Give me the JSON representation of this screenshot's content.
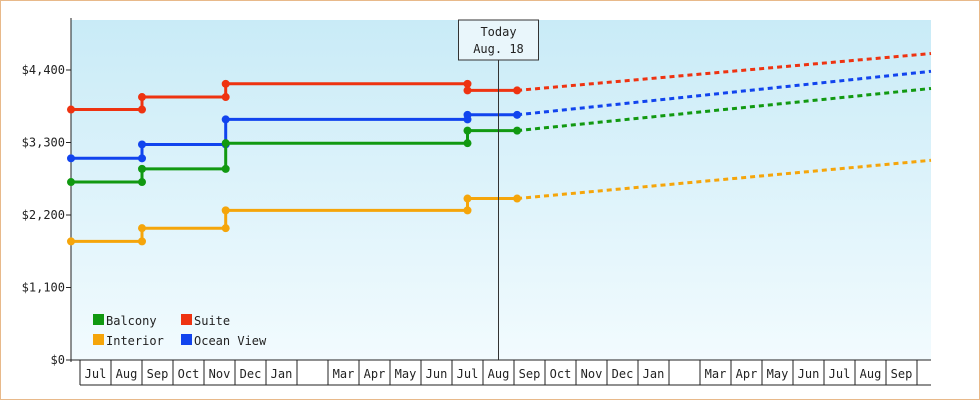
{
  "chart_data": {
    "type": "line",
    "step": true,
    "y_ticks": [
      0,
      1100,
      2200,
      3300,
      4400
    ],
    "y_tick_labels": [
      "$0",
      "$1,100",
      "$2,200",
      "$3,300",
      "$4,400"
    ],
    "ylim": [
      0,
      4400
    ],
    "x_tick_labels": [
      "Jul",
      "Aug",
      "Sep",
      "Oct",
      "Nov",
      "Dec",
      "Jan",
      "",
      "Mar",
      "Apr",
      "May",
      "Jun",
      "Jul",
      "Aug",
      "Sep",
      "Oct",
      "Nov",
      "Dec",
      "Jan",
      "",
      "Mar",
      "Apr",
      "May",
      "Jun",
      "Jul",
      "Aug",
      "Sep"
    ],
    "today": {
      "line1": "Today",
      "line2": "Aug. 18",
      "month_index": 13
    },
    "series": [
      {
        "name": "Suite",
        "color": "#ee3311",
        "points": [
          [
            0,
            3800
          ],
          [
            1.5,
            3800
          ],
          [
            1.5,
            3990
          ],
          [
            4.2,
            3990
          ],
          [
            4.2,
            4190
          ],
          [
            12,
            4190
          ],
          [
            12,
            4090
          ],
          [
            13.6,
            4090
          ]
        ],
        "forecast_end": 4650
      },
      {
        "name": "Ocean View",
        "color": "#1144ee",
        "points": [
          [
            0,
            3060
          ],
          [
            1.5,
            3060
          ],
          [
            1.5,
            3270
          ],
          [
            4.2,
            3270
          ],
          [
            4.2,
            3650
          ],
          [
            12,
            3650
          ],
          [
            12,
            3720
          ],
          [
            13.6,
            3720
          ]
        ],
        "forecast_end": 4380
      },
      {
        "name": "Balcony",
        "color": "#119911",
        "points": [
          [
            0,
            2700
          ],
          [
            1.5,
            2700
          ],
          [
            1.5,
            2900
          ],
          [
            4.2,
            2900
          ],
          [
            4.2,
            3290
          ],
          [
            12,
            3290
          ],
          [
            12,
            3480
          ],
          [
            13.6,
            3480
          ]
        ],
        "forecast_end": 4120
      },
      {
        "name": "Interior",
        "color": "#f5a50a",
        "points": [
          [
            0,
            1800
          ],
          [
            1.5,
            1800
          ],
          [
            1.5,
            2000
          ],
          [
            4.2,
            2000
          ],
          [
            4.2,
            2270
          ],
          [
            12,
            2270
          ],
          [
            12,
            2450
          ],
          [
            13.6,
            2450
          ]
        ],
        "forecast_end": 3030
      }
    ],
    "legend": [
      {
        "name": "Balcony",
        "color": "#119911"
      },
      {
        "name": "Suite",
        "color": "#ee3311"
      },
      {
        "name": "Interior",
        "color": "#f5a50a"
      },
      {
        "name": "Ocean View",
        "color": "#1144ee"
      }
    ],
    "legend_position": "bottom-left",
    "grid": false
  }
}
